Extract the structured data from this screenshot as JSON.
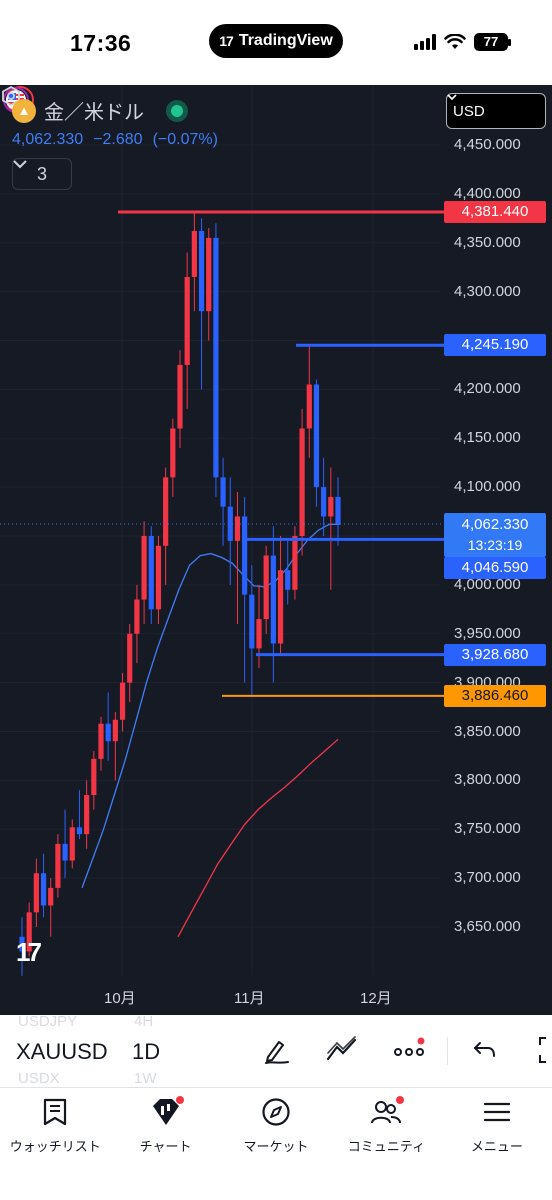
{
  "status_bar": {
    "time": "17:36",
    "app_pill": "TradingView",
    "app_logo": "17",
    "battery": "77"
  },
  "symbol": {
    "icon": "gold-coin-icon",
    "name": "金／米ドル",
    "price": "4,062.330",
    "change": "−2.680",
    "change_pct": "(−0.07%)",
    "indicator_count": "3"
  },
  "currency": "USD",
  "price_axis": [
    "4,450.000",
    "4,400.000",
    "4,350.000",
    "4,300.000",
    "4,250.000",
    "4,200.000",
    "4,150.000",
    "4,100.000",
    "4,050.000",
    "4,000.000",
    "3,950.000",
    "3,900.000",
    "3,850.000",
    "3,800.000",
    "3,750.000",
    "3,700.000",
    "3,650.000"
  ],
  "price_tags": {
    "high": {
      "value": "4,381.440",
      "color": "#f23645"
    },
    "resistance": {
      "value": "4,245.190",
      "color": "#2962ff"
    },
    "last": {
      "value": "4,062.330",
      "countdown": "13:23:19",
      "color": "#3179f5"
    },
    "support1": {
      "value": "4,046.590",
      "color": "#2962ff"
    },
    "support2": {
      "value": "3,928.680",
      "color": "#2962ff"
    },
    "low": {
      "value": "3,886.460",
      "color": "#ff9800"
    }
  },
  "time_axis": [
    "10月",
    "11月",
    "12月"
  ],
  "toolbar": {
    "ticker": "XAUUSD",
    "interval": "1D",
    "ghost_ticker_above": "USDJPY",
    "ghost_interval_above": "4H",
    "ghost_ticker_below": "USDX",
    "ghost_interval_below": "1W"
  },
  "bottom_nav": [
    {
      "label": "ウォッチリスト",
      "icon": "watchlist-icon"
    },
    {
      "label": "チャート",
      "icon": "chart-icon"
    },
    {
      "label": "マーケット",
      "icon": "compass-icon"
    },
    {
      "label": "コミュニティ",
      "icon": "community-icon"
    },
    {
      "label": "メニュー",
      "icon": "menu-icon"
    }
  ],
  "colors": {
    "up": "#f23645",
    "down": "#2962ff",
    "background": "#161a25",
    "ma_fast": "#3f7ef5",
    "ma_slow": "#f23645"
  },
  "chart_data": {
    "type": "candlestick",
    "symbol": "XAUUSD",
    "interval": "1D",
    "ylim": [
      3600,
      4480
    ],
    "x_ticks": [
      "10月",
      "11月",
      "12月"
    ],
    "candles_ohlc": [
      [
        3640,
        3660,
        3600,
        3625
      ],
      [
        3625,
        3675,
        3620,
        3665
      ],
      [
        3665,
        3720,
        3650,
        3705
      ],
      [
        3705,
        3725,
        3660,
        3672
      ],
      [
        3672,
        3700,
        3640,
        3690
      ],
      [
        3690,
        3745,
        3680,
        3735
      ],
      [
        3735,
        3770,
        3700,
        3718
      ],
      [
        3718,
        3760,
        3710,
        3752
      ],
      [
        3752,
        3790,
        3740,
        3745
      ],
      [
        3745,
        3800,
        3730,
        3785
      ],
      [
        3785,
        3830,
        3770,
        3822
      ],
      [
        3822,
        3865,
        3810,
        3858
      ],
      [
        3858,
        3890,
        3820,
        3840
      ],
      [
        3840,
        3870,
        3800,
        3862
      ],
      [
        3862,
        3910,
        3850,
        3900
      ],
      [
        3900,
        3960,
        3880,
        3950
      ],
      [
        3950,
        4000,
        3920,
        3985
      ],
      [
        3985,
        4065,
        3960,
        4050
      ],
      [
        4050,
        4060,
        3960,
        3975
      ],
      [
        3975,
        4050,
        3960,
        4040
      ],
      [
        4040,
        4120,
        4000,
        4110
      ],
      [
        4110,
        4170,
        4090,
        4160
      ],
      [
        4160,
        4240,
        4140,
        4225
      ],
      [
        4225,
        4340,
        4180,
        4315
      ],
      [
        4315,
        4381,
        4280,
        4362
      ],
      [
        4362,
        4375,
        4200,
        4280
      ],
      [
        4280,
        4365,
        4250,
        4355
      ],
      [
        4355,
        4370,
        4090,
        4110
      ],
      [
        4110,
        4130,
        4040,
        4080
      ],
      [
        4080,
        4110,
        4000,
        4045
      ],
      [
        4045,
        4095,
        3960,
        4070
      ],
      [
        4070,
        4090,
        3900,
        3990
      ],
      [
        3990,
        4020,
        3886,
        3935
      ],
      [
        3935,
        4000,
        3915,
        3965
      ],
      [
        3965,
        4040,
        3950,
        4030
      ],
      [
        4030,
        4060,
        3900,
        3940
      ],
      [
        3940,
        4050,
        3928,
        4015
      ],
      [
        4015,
        4045,
        3980,
        3995
      ],
      [
        3995,
        4060,
        3985,
        4050
      ],
      [
        4050,
        4180,
        4030,
        4160
      ],
      [
        4160,
        4245,
        4130,
        4205
      ],
      [
        4205,
        4210,
        4080,
        4100
      ],
      [
        4100,
        4130,
        4050,
        4070
      ],
      [
        4070,
        4120,
        3995,
        4090
      ],
      [
        4090,
        4110,
        4040,
        4062
      ]
    ],
    "ma_fast": [
      3690,
      3720,
      3750,
      3785,
      3820,
      3860,
      3900,
      3935,
      3965,
      3995,
      4020,
      4030,
      4032,
      4028,
      4022,
      4010,
      3999,
      3998,
      4004,
      4016,
      4032,
      4046,
      4056,
      4062,
      4062
    ],
    "ma_slow": [
      3640,
      3665,
      3690,
      3715,
      3735,
      3755,
      3770,
      3782,
      3793,
      3805,
      3818,
      3830,
      3842
    ]
  }
}
